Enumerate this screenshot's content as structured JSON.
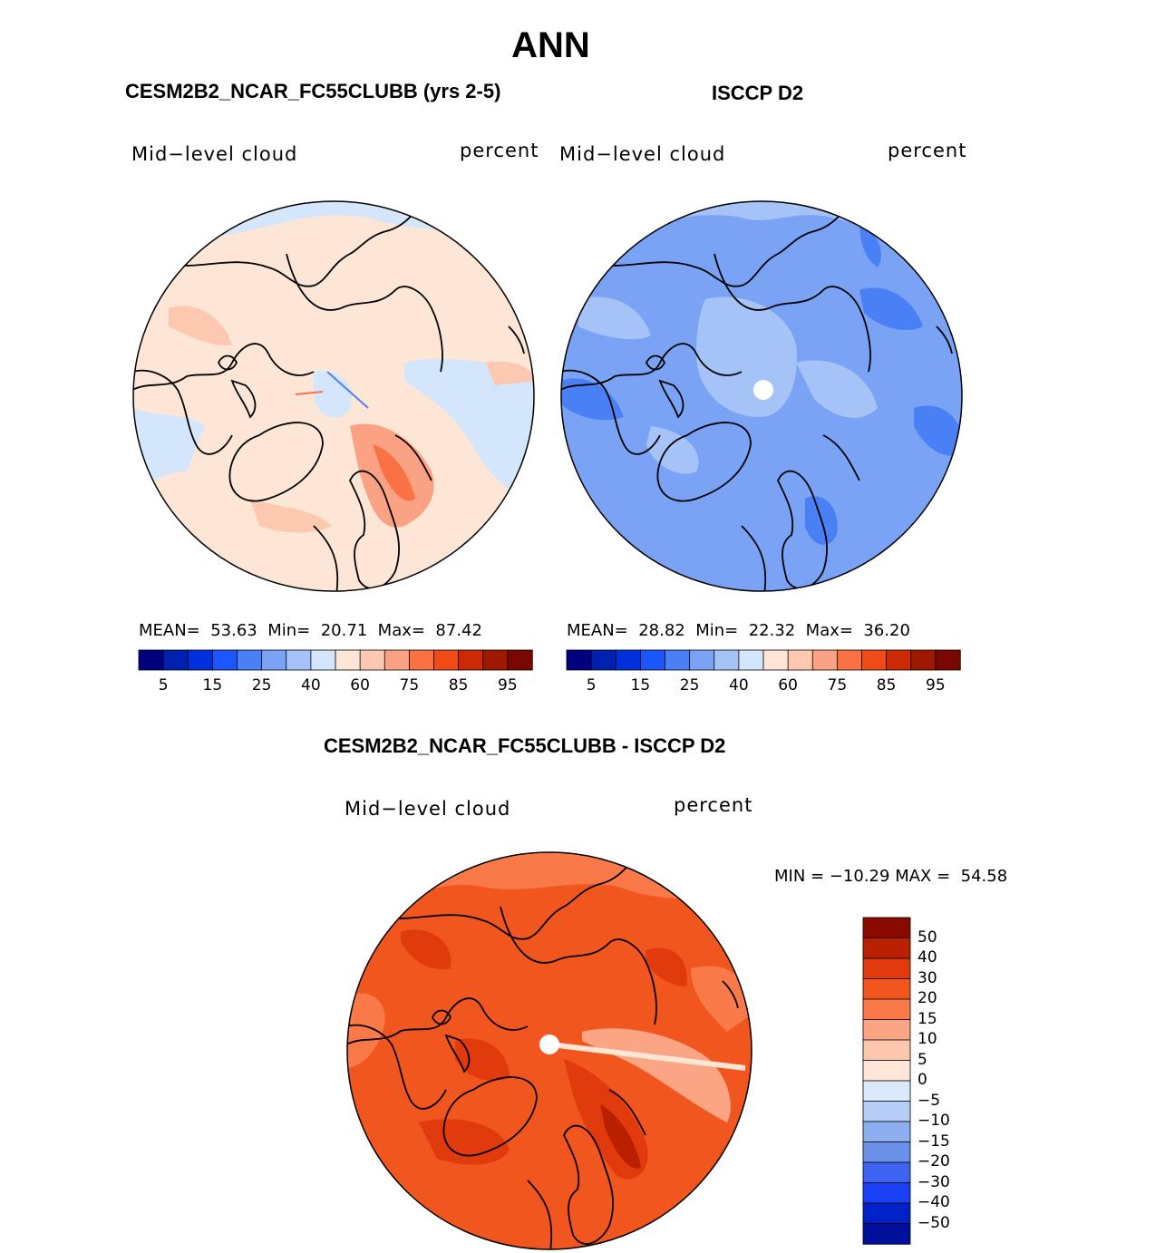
{
  "figure": {
    "season": "ANN",
    "panels": [
      {
        "title": "CESM2B2_NCAR_FC55CLUBB (yrs 2-5)",
        "variable": "Mid−level cloud",
        "units": "percent",
        "stats": {
          "mean_label": "MEAN=",
          "mean": "53.63",
          "min_label": "Min=",
          "min": "20.71",
          "max_label": "Max=",
          "max": "87.42"
        }
      },
      {
        "title": "ISCCP D2",
        "variable": "Mid−level cloud",
        "units": "percent",
        "stats": {
          "mean_label": "MEAN=",
          "mean": "28.82",
          "min_label": "Min=",
          "min": "22.32",
          "max_label": "Max=",
          "max": "36.20"
        }
      },
      {
        "title": "CESM2B2_NCAR_FC55CLUBB - ISCCP D2",
        "variable": "Mid−level cloud",
        "units": "percent",
        "minmax": {
          "min_label": "MIN =",
          "min": "−10.29",
          "max_label": "MAX =",
          "max": "54.58"
        }
      }
    ]
  },
  "chart_data": [
    {
      "type": "heatmap",
      "title": "CESM2B2_NCAR_FC55CLUBB (yrs 2-5)",
      "projection": "north polar stereographic",
      "mean": 53.63,
      "min": 20.71,
      "max": 87.42,
      "colorbar": {
        "orientation": "horizontal",
        "levels": [
          5,
          10,
          15,
          20,
          25,
          30,
          40,
          50,
          60,
          70,
          75,
          80,
          85,
          90,
          95
        ],
        "tick_labels": [
          "5",
          "15",
          "25",
          "40",
          "60",
          "75",
          "85",
          "95"
        ],
        "colors": [
          "#00007f",
          "#0020b0",
          "#0030dd",
          "#1a55ff",
          "#4a80f5",
          "#7aa3f5",
          "#a6c3f8",
          "#d4e6fb",
          "#fde6d6",
          "#fcc8af",
          "#fba285",
          "#fa7243",
          "#f04a17",
          "#cc2a05",
          "#9e1802",
          "#7a0800"
        ]
      }
    },
    {
      "type": "heatmap",
      "title": "ISCCP D2",
      "projection": "north polar stereographic",
      "mean": 28.82,
      "min": 22.32,
      "max": 36.2,
      "colorbar": {
        "orientation": "horizontal",
        "levels": [
          5,
          10,
          15,
          20,
          25,
          30,
          40,
          50,
          60,
          70,
          75,
          80,
          85,
          90,
          95
        ],
        "tick_labels": [
          "5",
          "15",
          "25",
          "40",
          "60",
          "75",
          "85",
          "95"
        ],
        "colors": [
          "#00007f",
          "#0020b0",
          "#0030dd",
          "#1a55ff",
          "#4a80f5",
          "#7aa3f5",
          "#a6c3f8",
          "#d4e6fb",
          "#fde6d6",
          "#fcc8af",
          "#fba285",
          "#fa7243",
          "#f04a17",
          "#cc2a05",
          "#9e1802",
          "#7a0800"
        ]
      }
    },
    {
      "type": "heatmap",
      "title": "CESM2B2_NCAR_FC55CLUBB - ISCCP D2",
      "projection": "north polar stereographic",
      "min": -10.29,
      "max": 54.58,
      "colorbar": {
        "orientation": "vertical",
        "tick_labels_top_to_bottom": [
          "50",
          "40",
          "30",
          "20",
          "15",
          "10",
          "5",
          "0",
          "−5",
          "−10",
          "−15",
          "−20",
          "−30",
          "−40",
          "−50"
        ],
        "colors_top_to_bottom": [
          "#8b0a00",
          "#b82000",
          "#e03a0d",
          "#f2561f",
          "#f97a48",
          "#fba585",
          "#fdc7ad",
          "#fee6d8",
          "#dbeafb",
          "#b6cdf7",
          "#8dafef",
          "#6b90e8",
          "#3d63f0",
          "#1840f5",
          "#0020c8",
          "#00109a"
        ]
      }
    }
  ]
}
